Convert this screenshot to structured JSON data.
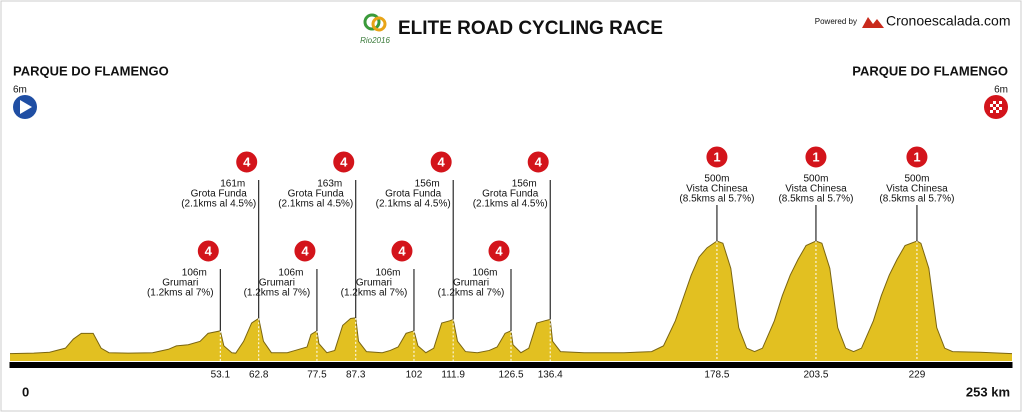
{
  "chart_data": {
    "type": "area",
    "title": "ELITE ROAD CYCLING RACE",
    "powered_by": "Powered by",
    "brand": "Cronoescalada.com",
    "start": {
      "name": "PARQUE DO FLAMENGO",
      "elevation": 6,
      "elevation_label": "6m"
    },
    "finish": {
      "name": "PARQUE DO FLAMENGO",
      "elevation": 6,
      "elevation_label": "6m"
    },
    "color": "#e2c021",
    "xlim": [
      0,
      253
    ],
    "ylim": [
      0,
      500
    ],
    "xticks": [
      0,
      53.1,
      62.8,
      77.5,
      87.3,
      102,
      111.9,
      126.5,
      136.4,
      178.5,
      203.5,
      229,
      {
        "value": 253,
        "label": "253 km"
      }
    ],
    "x": [
      0,
      6,
      10,
      14,
      16,
      18,
      21,
      23,
      25,
      30,
      36,
      40,
      42,
      45,
      48,
      50,
      53.1,
      54,
      56,
      57,
      59,
      61,
      62.8,
      64,
      66,
      70,
      72,
      75,
      76,
      77.5,
      78,
      80,
      82,
      84,
      86,
      87.3,
      88,
      90,
      94,
      96,
      98,
      100,
      102,
      103,
      105,
      107,
      109,
      111,
      111.9,
      113,
      115,
      118,
      121,
      123,
      125,
      126.5,
      127,
      129,
      131,
      133,
      135,
      136.4,
      137,
      139,
      145,
      155,
      162,
      165,
      168,
      170,
      172,
      174,
      176,
      178.5,
      180,
      182,
      184,
      186,
      188,
      190,
      193,
      195,
      197,
      199,
      201,
      203.5,
      205,
      207,
      209,
      211,
      213,
      215,
      218,
      220,
      222,
      224,
      226,
      229,
      230,
      232,
      234,
      236,
      238,
      245,
      250,
      253
    ],
    "values": [
      6,
      8,
      12,
      30,
      70,
      95,
      95,
      30,
      10,
      8,
      10,
      25,
      40,
      45,
      60,
      95,
      106,
      40,
      10,
      8,
      60,
      140,
      161,
      60,
      10,
      10,
      20,
      35,
      90,
      106,
      50,
      10,
      20,
      130,
      160,
      163,
      60,
      15,
      10,
      20,
      35,
      95,
      106,
      40,
      10,
      30,
      140,
      150,
      156,
      60,
      15,
      10,
      20,
      35,
      95,
      106,
      45,
      10,
      30,
      140,
      150,
      156,
      60,
      15,
      10,
      10,
      15,
      40,
      150,
      250,
      350,
      430,
      470,
      500,
      490,
      380,
      120,
      30,
      15,
      30,
      150,
      260,
      350,
      420,
      480,
      500,
      490,
      380,
      120,
      30,
      15,
      30,
      150,
      260,
      350,
      420,
      480,
      500,
      490,
      380,
      120,
      30,
      15,
      12,
      8,
      6
    ],
    "climbs": [
      {
        "category": 4,
        "km": 53.1,
        "elevation": 106,
        "elevation_label": "106m",
        "name": "Grumari",
        "detail": "(1.2kms al 7%)"
      },
      {
        "category": 4,
        "km": 62.8,
        "elevation": 161,
        "elevation_label": "161m",
        "name": "Grota Funda",
        "detail": "(2.1kms al 4.5%)"
      },
      {
        "category": 4,
        "km": 77.5,
        "elevation": 106,
        "elevation_label": "106m",
        "name": "Grumari",
        "detail": "(1.2kms al 7%)"
      },
      {
        "category": 4,
        "km": 87.3,
        "elevation": 163,
        "elevation_label": "163m",
        "name": "Grota Funda",
        "detail": "(2.1kms al 4.5%)"
      },
      {
        "category": 4,
        "km": 102,
        "elevation": 106,
        "elevation_label": "106m",
        "name": "Grumari",
        "detail": "(1.2kms al 7%)"
      },
      {
        "category": 4,
        "km": 111.9,
        "elevation": 156,
        "elevation_label": "156m",
        "name": "Grota Funda",
        "detail": "(2.1kms al 4.5%)"
      },
      {
        "category": 4,
        "km": 126.5,
        "elevation": 106,
        "elevation_label": "106m",
        "name": "Grumari",
        "detail": "(1.2kms al 7%)"
      },
      {
        "category": 4,
        "km": 136.4,
        "elevation": 156,
        "elevation_label": "156m",
        "name": "Grota Funda",
        "detail": "(2.1kms al 4.5%)"
      },
      {
        "category": 1,
        "km": 178.5,
        "elevation": 500,
        "elevation_label": "500m",
        "name": "Vista Chinesa",
        "detail": "(8.5kms al 5.7%)"
      },
      {
        "category": 1,
        "km": 203.5,
        "elevation": 500,
        "elevation_label": "500m",
        "name": "Vista Chinesa",
        "detail": "(8.5kms al 5.7%)"
      },
      {
        "category": 1,
        "km": 229,
        "elevation": 500,
        "elevation_label": "500m",
        "name": "Vista Chinesa",
        "detail": "(8.5kms al 5.7%)"
      }
    ]
  }
}
